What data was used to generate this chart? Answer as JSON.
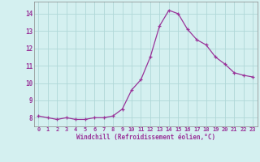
{
  "x": [
    0,
    1,
    2,
    3,
    4,
    5,
    6,
    7,
    8,
    9,
    10,
    11,
    12,
    13,
    14,
    15,
    16,
    17,
    18,
    19,
    20,
    21,
    22,
    23
  ],
  "y": [
    8.1,
    8.0,
    7.9,
    8.0,
    7.9,
    7.9,
    8.0,
    8.0,
    8.1,
    8.5,
    9.6,
    10.2,
    11.5,
    13.3,
    14.2,
    14.0,
    13.1,
    12.5,
    12.2,
    11.5,
    11.1,
    10.6,
    10.45,
    10.35
  ],
  "line_color": "#993399",
  "marker_color": "#993399",
  "bg_color": "#d4f0f0",
  "grid_color": "#b0d8d8",
  "xlabel": "Windchill (Refroidissement éolien,°C)",
  "xlabel_color": "#993399",
  "tick_color": "#993399",
  "ylim_min": 7.5,
  "ylim_max": 14.7,
  "xlim_min": -0.5,
  "xlim_max": 23.5,
  "yticks": [
    8,
    9,
    10,
    11,
    12,
    13,
    14
  ],
  "xticks": [
    0,
    1,
    2,
    3,
    4,
    5,
    6,
    7,
    8,
    9,
    10,
    11,
    12,
    13,
    14,
    15,
    16,
    17,
    18,
    19,
    20,
    21,
    22,
    23
  ]
}
